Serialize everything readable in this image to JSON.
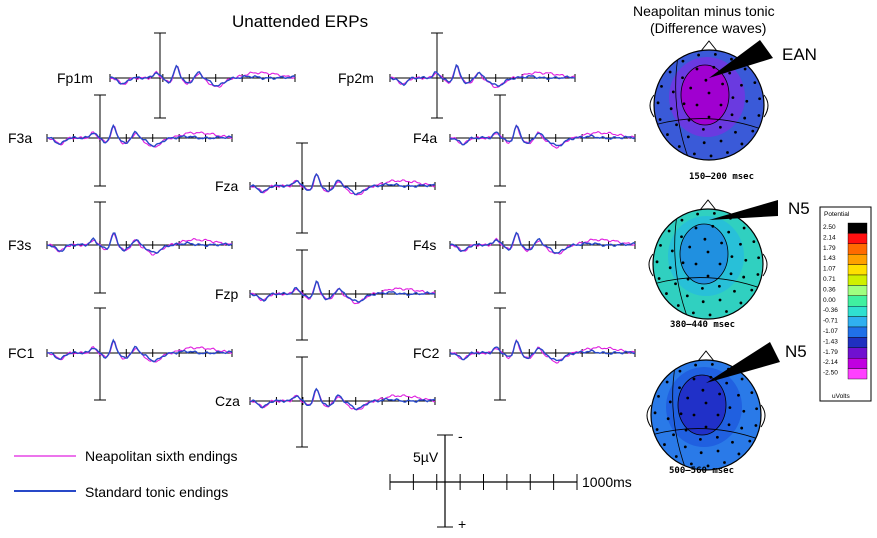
{
  "title": "Unattended ERPs",
  "topo_title_1": "Neapolitan minus tonic",
  "topo_title_2": "(Difference waves)",
  "legend": {
    "neapolitan": "Neapolitan sixth endings",
    "standard": "Standard tonic endings"
  },
  "colors": {
    "neapolitan": "#e020e0",
    "standard": "#2848c8"
  },
  "scale": {
    "amplitude": "5µV",
    "time": "1000ms",
    "minus": "-",
    "plus": "+"
  },
  "topomaps": [
    {
      "window": "150–200  msec",
      "label": "EAN",
      "base": "#3a5ad8",
      "core": "#a000d0",
      "mid": "#6a3ae0"
    },
    {
      "window": "380–440  msec",
      "label": "N5",
      "base": "#30d0c0",
      "core": "#2090e0",
      "mid": "#28c0d8"
    },
    {
      "window": "500–560  msec",
      "label": "N5",
      "base": "#2a7ae8",
      "core": "#2030c8",
      "mid": "#2060e0"
    }
  ],
  "colorbar": {
    "title": "Potential",
    "unit": "uVolts",
    "ticks": [
      "2.50",
      "2.14",
      "1.79",
      "1.43",
      "1.07",
      "0.71",
      "0.36",
      "0.00",
      "-0.36",
      "-0.71",
      "-1.07",
      "-1.43",
      "-1.79",
      "-2.14",
      "-2.50"
    ],
    "colors": [
      "#000000",
      "#ff1010",
      "#ff6a00",
      "#ffa000",
      "#ffe000",
      "#d0f000",
      "#a0ff80",
      "#40f0a0",
      "#30e0d0",
      "#30b0f0",
      "#2070e8",
      "#2030c0",
      "#7010d0",
      "#c000e0",
      "#ff40ff"
    ]
  },
  "chart_data": {
    "type": "line",
    "xlabel": "",
    "ylabel": "",
    "series_names": [
      "Neapolitan sixth endings",
      "Standard tonic endings"
    ],
    "channels": [
      {
        "name": "Fp1m"
      },
      {
        "name": "Fp2m"
      },
      {
        "name": "F3a"
      },
      {
        "name": "F4a"
      },
      {
        "name": "Fza"
      },
      {
        "name": "F3s"
      },
      {
        "name": "F4s"
      },
      {
        "name": "Fzp"
      },
      {
        "name": "FC1"
      },
      {
        "name": "FC2"
      },
      {
        "name": "Cza"
      }
    ]
  }
}
